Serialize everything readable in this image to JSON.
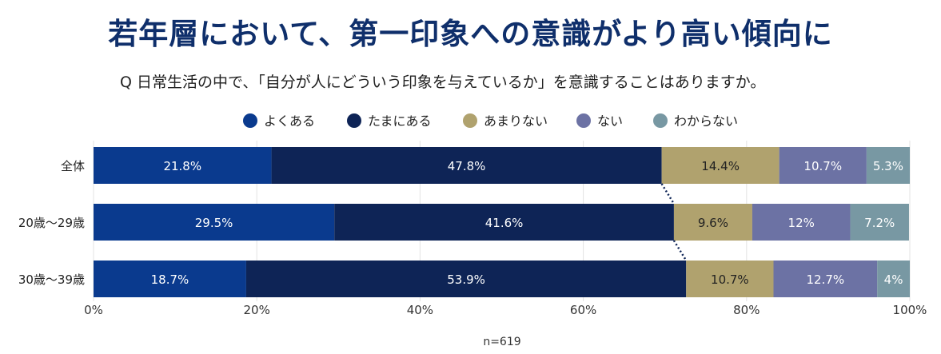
{
  "title": "若年層において、第一印象への意識がより高い傾向に",
  "subtitle": "Q 日常生活の中で、「自分が人にどういう印象を与えているか」を意識することはありますか。",
  "chart_data": {
    "type": "bar",
    "orientation": "horizontal",
    "stacked": true,
    "categories": [
      "全体",
      "20歳〜29歳",
      "30歳〜39歳"
    ],
    "series": [
      {
        "name": "よくある",
        "values": [
          21.8,
          29.5,
          18.7
        ],
        "labels": [
          "21.8%",
          "29.5%",
          "18.7%"
        ],
        "color": "#0a3a8e"
      },
      {
        "name": "たまにある",
        "values": [
          47.8,
          41.6,
          53.9
        ],
        "labels": [
          "47.8%",
          "41.6%",
          "53.9%"
        ],
        "color": "#0e2456"
      },
      {
        "name": "あまりない",
        "values": [
          14.4,
          9.6,
          10.7
        ],
        "labels": [
          "14.4%",
          "9.6%",
          "10.7%"
        ],
        "color": "#b0a26e"
      },
      {
        "name": "ない",
        "values": [
          10.7,
          12,
          12.7
        ],
        "labels": [
          "10.7%",
          "12%",
          "12.7%"
        ],
        "color": "#6c72a4"
      },
      {
        "name": "わからない",
        "values": [
          5.3,
          7.2,
          4
        ],
        "labels": [
          "5.3%",
          "7.2%",
          "4%"
        ],
        "color": "#7898a3"
      }
    ],
    "xlim": [
      0,
      100
    ],
    "xticks": [
      "0%",
      "20%",
      "40%",
      "60%",
      "80%",
      "100%"
    ],
    "grid": true,
    "legend": "top-center",
    "note": "n=619"
  }
}
